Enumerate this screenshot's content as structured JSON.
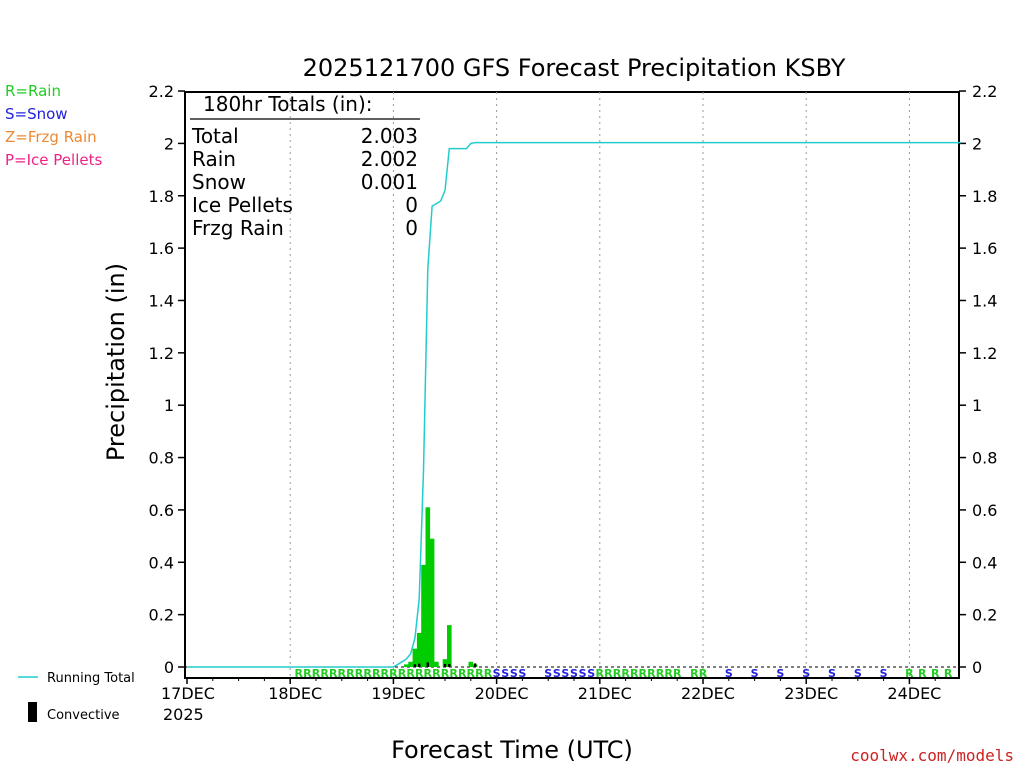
{
  "colors": {
    "rain": "#22cc22",
    "snow": "#2222dd",
    "frzg_rain": "#ee8833",
    "ice_pellets": "#ee2288",
    "running_total": "#22cccc",
    "bars": "#00cc00",
    "convective": "#000000",
    "credit": "#cc2222"
  },
  "type_legend": [
    {
      "key": "R",
      "text": "R=Rain",
      "color": "#22cc22"
    },
    {
      "key": "S",
      "text": "S=Snow",
      "color": "#2222dd"
    },
    {
      "key": "Z",
      "text": "Z=Frzg Rain",
      "color": "#ee8833"
    },
    {
      "key": "P",
      "text": "P=Ice Pellets",
      "color": "#ee2288"
    }
  ],
  "bottom_legend": {
    "running_total": "Running Total",
    "convective": "Convective"
  },
  "totals_box": {
    "header": "180hr Totals (in):",
    "rows": [
      {
        "label": "Total",
        "value": "2.003"
      },
      {
        "label": "Rain",
        "value": "2.002"
      },
      {
        "label": "Snow",
        "value": "0.001"
      },
      {
        "label": "Ice Pellets",
        "value": "0"
      },
      {
        "label": "Frzg Rain",
        "value": "0"
      }
    ]
  },
  "credit": "coolwx.com/models",
  "chart_data": {
    "type": "bar",
    "title": "2025121700 GFS Forecast Precipitation KSBY",
    "xlabel": "Forecast Time (UTC)",
    "ylabel": "Precipitation (in)",
    "x_unit": "forecast hour",
    "xlim": [
      0,
      180
    ],
    "ylim": [
      0,
      2.2
    ],
    "yticks": [
      "0",
      "0.2",
      "0.4",
      "0.6",
      "0.8",
      "1",
      "1.2",
      "1.4",
      "1.6",
      "1.8",
      "2",
      "2.2"
    ],
    "xticks": [
      {
        "hour": 0,
        "label": "17DEC",
        "sublabel": "2025"
      },
      {
        "hour": 24,
        "label": "18DEC"
      },
      {
        "hour": 48,
        "label": "19DEC"
      },
      {
        "hour": 72,
        "label": "20DEC"
      },
      {
        "hour": 96,
        "label": "21DEC"
      },
      {
        "hour": 120,
        "label": "22DEC"
      },
      {
        "hour": 144,
        "label": "23DEC"
      },
      {
        "hour": 168,
        "label": "24DEC"
      }
    ],
    "grid": "vertical dotted at day boundaries",
    "bars": {
      "name": "3hr Precipitation",
      "hours": [
        51,
        52,
        53,
        54,
        55,
        56,
        57,
        58,
        60,
        61,
        66,
        67
      ],
      "values": [
        0.01,
        0.02,
        0.07,
        0.13,
        0.39,
        0.61,
        0.49,
        0.02,
        0.03,
        0.16,
        0.02,
        0.01
      ]
    },
    "convective": {
      "hours": [
        53,
        54,
        56,
        60,
        61,
        67
      ],
      "values": [
        0.003,
        0.005,
        0.01,
        0.004,
        0.004,
        0.006
      ]
    },
    "running_total": {
      "name": "Running Total",
      "hours": [
        0,
        48,
        49,
        50,
        51,
        52,
        53,
        54,
        55,
        56,
        57,
        58,
        59,
        60,
        61,
        62,
        63,
        64,
        65,
        66,
        67,
        180
      ],
      "values": [
        0,
        0,
        0.01,
        0.02,
        0.03,
        0.05,
        0.11,
        0.26,
        0.75,
        1.52,
        1.76,
        1.77,
        1.78,
        1.82,
        1.98,
        1.98,
        1.98,
        1.98,
        1.98,
        2.0,
        2.003,
        2.003
      ]
    },
    "precip_type_markers": {
      "hours": [
        26,
        28,
        30,
        32,
        34,
        36,
        38,
        40,
        42,
        44,
        46,
        48,
        50,
        52,
        54,
        56,
        58,
        60,
        62,
        64,
        66,
        68,
        70,
        72,
        74,
        76,
        78,
        84,
        86,
        88,
        90,
        92,
        94,
        96,
        98,
        100,
        102,
        104,
        106,
        108,
        110,
        112,
        114,
        118,
        120,
        126,
        132,
        138,
        144,
        150,
        156,
        162,
        168,
        171,
        174,
        177
      ],
      "types": [
        "R",
        "R",
        "R",
        "R",
        "R",
        "R",
        "R",
        "R",
        "R",
        "R",
        "R",
        "R",
        "R",
        "R",
        "R",
        "R",
        "R",
        "R",
        "R",
        "R",
        "R",
        "R",
        "R",
        "S",
        "S",
        "S",
        "S",
        "S",
        "S",
        "S",
        "S",
        "S",
        "S",
        "R",
        "R",
        "R",
        "R",
        "R",
        "R",
        "R",
        "R",
        "R",
        "R",
        "R",
        "R",
        "S",
        "S",
        "S",
        "S",
        "S",
        "S",
        "S",
        "R",
        "R",
        "R",
        "R"
      ]
    }
  }
}
